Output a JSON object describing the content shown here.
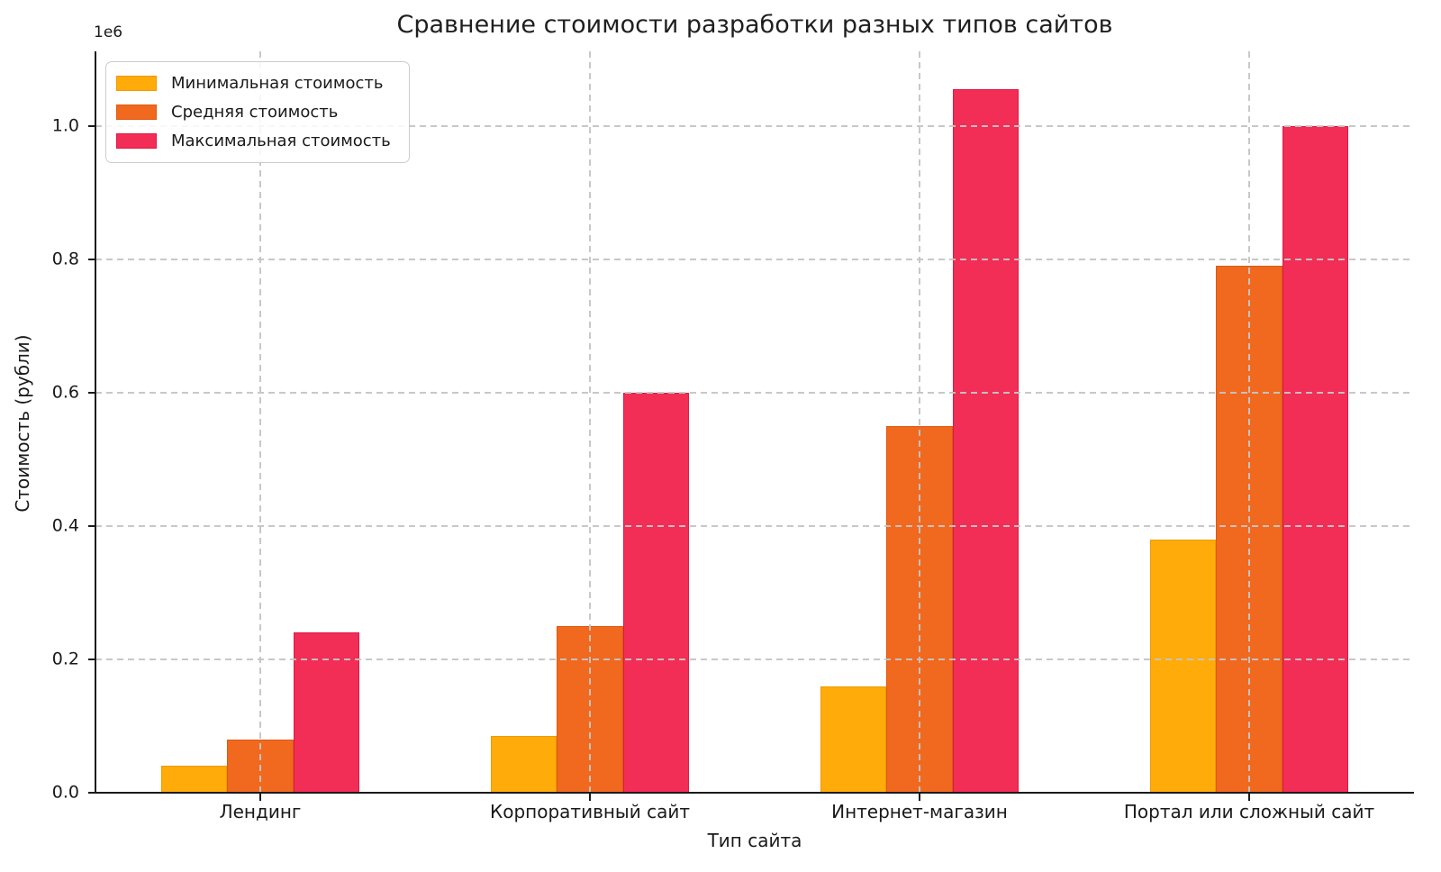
{
  "chart_data": {
    "type": "bar",
    "title": "Сравнение стоимости разработки разных типов сайтов",
    "xlabel": "Тип сайта",
    "ylabel": "Стоимость (рубли)",
    "y_offset_label": "1e6",
    "categories": [
      "Лендинг",
      "Корпоративный сайт",
      "Интернет-магазин",
      "Портал или сложный сайт"
    ],
    "series": [
      {
        "name": "Минимальная стоимость",
        "color": "#FFAB0A",
        "edge_color": "#EE9A00",
        "values": [
          40000,
          85000,
          160000,
          380000
        ]
      },
      {
        "name": "Средняя стоимость",
        "color": "#F0691E",
        "edge_color": "#DD5A12",
        "values": [
          80000,
          250000,
          550000,
          790000
        ]
      },
      {
        "name": "Максимальная стоимость",
        "color": "#F22D56",
        "edge_color": "#DE1A45",
        "values": [
          240000,
          600000,
          1055000,
          1000000
        ]
      }
    ],
    "yticks": [
      {
        "label": "0.0",
        "value": 0
      },
      {
        "label": "0.2",
        "value": 200000
      },
      {
        "label": "0.4",
        "value": 400000
      },
      {
        "label": "0.6",
        "value": 600000
      },
      {
        "label": "0.8",
        "value": 800000
      },
      {
        "label": "1.0",
        "value": 1000000
      }
    ],
    "ylim": [
      0,
      1112000
    ],
    "grid": {
      "style": "dashed",
      "color": "#c5c5c5",
      "drawn_over_bars": true
    },
    "legend": {
      "position": "upper left"
    }
  }
}
